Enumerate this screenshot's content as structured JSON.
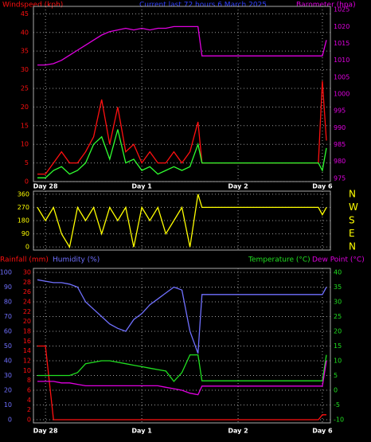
{
  "chart_data": [
    {
      "type": "line",
      "title": "Current last 72 hours 6 March 2025",
      "ylabel": "Windspeed (kph)",
      "y2label": "Barometer (hpa)",
      "x": [
        -2,
        0,
        2,
        4,
        6,
        8,
        10,
        12,
        14,
        16,
        18,
        20,
        22,
        24,
        26,
        28,
        30,
        32,
        34,
        36,
        38,
        39,
        68,
        69,
        70
      ],
      "xlim": [
        -3,
        71
      ],
      "xticks": [
        {
          "value": 0,
          "label": "Day 28"
        },
        {
          "value": 24,
          "label": "Day 1"
        },
        {
          "value": 48,
          "label": "Day 2"
        },
        {
          "value": 69,
          "label": "Day 6"
        }
      ],
      "ylim": [
        0,
        47
      ],
      "yticks": [
        0,
        5,
        10,
        15,
        20,
        25,
        30,
        35,
        40,
        45
      ],
      "y2lim": [
        974,
        1026
      ],
      "y2ticks": [
        975,
        980,
        985,
        990,
        995,
        1000,
        1005,
        1010,
        1015,
        1020,
        1025
      ],
      "grid": true,
      "series": [
        {
          "color": "#ff1010",
          "values": [
            2,
            2,
            5,
            8,
            5,
            5,
            8,
            12,
            22,
            10,
            20,
            8,
            10,
            5,
            8,
            5,
            5,
            8,
            5,
            8,
            16,
            5,
            5,
            27,
            11
          ]
        },
        {
          "color": "#30ff30",
          "values": [
            1,
            1,
            3,
            4,
            2,
            3,
            5,
            10,
            12,
            6,
            14,
            5,
            6,
            3,
            4,
            2,
            3,
            4,
            3,
            4,
            10,
            5,
            5,
            3,
            9
          ]
        },
        {
          "color": "#e000e0",
          "axis": "y2",
          "values": [
            1008.6,
            1008.6,
            1009,
            1010,
            1011.5,
            1013,
            1014.5,
            1016,
            1017.5,
            1018.5,
            1019,
            1019.5,
            1019,
            1019.5,
            1019,
            1019.5,
            1019.5,
            1020,
            1020,
            1020,
            1020,
            1011.3,
            1011.3,
            1011.3,
            1016
          ]
        }
      ]
    },
    {
      "type": "line",
      "x": [
        -2,
        0,
        2,
        4,
        6,
        8,
        10,
        12,
        14,
        16,
        18,
        20,
        22,
        24,
        26,
        28,
        30,
        32,
        34,
        36,
        38,
        39,
        68,
        69,
        70
      ],
      "xlim": [
        -3,
        71
      ],
      "ylim": [
        -10,
        370
      ],
      "yticks": [
        0,
        90,
        180,
        270,
        360
      ],
      "y2lim": [
        -10,
        370
      ],
      "y2ticks": [
        {
          "value": 360,
          "label": "N"
        },
        {
          "value": 270,
          "label": "W"
        },
        {
          "value": 180,
          "label": "S"
        },
        {
          "value": 90,
          "label": "E"
        },
        {
          "value": 0,
          "label": "N"
        }
      ],
      "grid": true,
      "series": [
        {
          "color": "#ffff00",
          "values": [
            270,
            180,
            270,
            90,
            0,
            270,
            180,
            270,
            90,
            270,
            180,
            270,
            0,
            270,
            180,
            270,
            90,
            180,
            270,
            0,
            360,
            270,
            270,
            220,
            270
          ]
        }
      ]
    },
    {
      "type": "line",
      "x": [
        -2,
        0,
        2,
        4,
        6,
        8,
        10,
        12,
        14,
        16,
        18,
        20,
        22,
        24,
        26,
        28,
        30,
        32,
        34,
        36,
        38,
        39,
        68,
        69,
        70
      ],
      "xlim": [
        -3,
        71
      ],
      "xticks": [
        {
          "value": 0,
          "label": "Day 28"
        },
        {
          "value": 24,
          "label": "Day 1"
        },
        {
          "value": 48,
          "label": "Day 2"
        },
        {
          "value": 69,
          "label": "Day 6"
        }
      ],
      "ylim": [
        0,
        100
      ],
      "yticks": [
        0,
        10,
        20,
        30,
        40,
        50,
        60,
        70,
        80,
        90,
        100
      ],
      "y3lim": [
        0,
        30
      ],
      "y3ticks": [
        0,
        2,
        4,
        6,
        8,
        10,
        12,
        14,
        16,
        18,
        20,
        22,
        24,
        26,
        28,
        30
      ],
      "y2lim": [
        -10,
        40
      ],
      "y2ticks": [
        -10,
        -5,
        0,
        5,
        10,
        15,
        20,
        25,
        30,
        35,
        40
      ],
      "grid": true,
      "series": [
        {
          "name": "Rainfall (mm)",
          "color": "#ff1010",
          "axis": "y3",
          "values": [
            15,
            15,
            0,
            0,
            0,
            0,
            0,
            0,
            0,
            0,
            0,
            0,
            0,
            0,
            0,
            0,
            0,
            0,
            0,
            0,
            0,
            0,
            0,
            1,
            1
          ]
        },
        {
          "name": "Humidity (%)",
          "color": "#7070ff",
          "values": [
            95,
            94,
            93,
            93,
            92,
            90,
            80,
            75,
            70,
            65,
            62,
            60,
            68,
            72,
            78,
            82,
            86,
            90,
            88,
            60,
            45,
            85,
            85,
            85,
            90
          ]
        },
        {
          "name": "Temperature (°C)",
          "color": "#20e020",
          "axis": "y2",
          "values": [
            5,
            5,
            5,
            5,
            5,
            6,
            9,
            9.5,
            10,
            10,
            9.5,
            9,
            8.5,
            8,
            7.5,
            7,
            6.5,
            3,
            6,
            12,
            12,
            3.2,
            3.2,
            3.2,
            12
          ]
        },
        {
          "name": "Dew Point (°C)",
          "color": "#e000e0",
          "axis": "y2",
          "values": [
            3,
            3,
            3,
            2.5,
            2.5,
            2,
            1.5,
            1.5,
            1.5,
            1.5,
            1.5,
            1.5,
            1.5,
            1.5,
            1.5,
            1.5,
            1,
            0.5,
            0,
            -1,
            -1.5,
            1.4,
            1.4,
            1.4,
            10
          ]
        }
      ]
    }
  ]
}
